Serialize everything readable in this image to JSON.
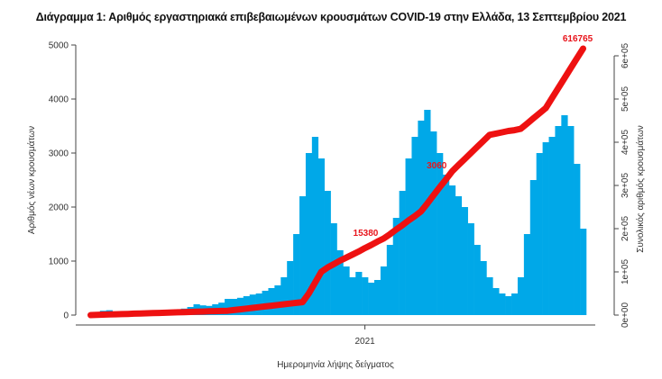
{
  "chart_data": {
    "type": "bar",
    "title": "Διάγραμμα 1: Αριθμός εργαστηριακά επιβεβαιωμένων κρουσμάτων COVID-19 στην Ελλάδα, 13 Σεπτεμβρίου 2021",
    "xlabel": "Ημερομηνία λήψης δείγματος",
    "ylabel": "Αριθμός νέων κρουσμάτων",
    "y2label": "Συνολικός αριθμός κρουσμάτων",
    "ylim": [
      0,
      5000
    ],
    "y2lim": [
      0,
      600000
    ],
    "yticks": [
      "0",
      "1000",
      "2000",
      "3000",
      "4000",
      "5000"
    ],
    "y2ticks": [
      "0e+00",
      "1e+05",
      "2e+05",
      "3e+05",
      "4e+05",
      "5e+05",
      "6e+05"
    ],
    "xticks": [
      {
        "label": "2021",
        "index": 44
      }
    ],
    "grid": false,
    "bar_color": "#00a8e8",
    "line_color": "#ee1111",
    "series": [
      {
        "type": "bar",
        "values": [
          20,
          50,
          80,
          90,
          60,
          40,
          30,
          20,
          20,
          20,
          30,
          40,
          60,
          80,
          100,
          120,
          150,
          200,
          180,
          170,
          200,
          230,
          300,
          300,
          320,
          350,
          380,
          400,
          450,
          500,
          550,
          700,
          1000,
          1500,
          2200,
          3000,
          3300,
          2900,
          2300,
          1700,
          1200,
          900,
          700,
          800,
          700,
          600,
          650,
          900,
          1300,
          1800,
          2300,
          2900,
          3300,
          3600,
          3800,
          3400,
          3000,
          2600,
          2400,
          2200,
          2000,
          1700,
          1300,
          1000,
          700,
          500,
          400,
          350,
          400,
          700,
          1500,
          2500,
          3000,
          3200,
          3300,
          3500,
          3700,
          3500,
          2800,
          1600
        ]
      },
      {
        "type": "line",
        "axis": "right",
        "values": [
          100,
          550,
          1000,
          1450,
          1900,
          2350,
          2800,
          3250,
          3700,
          4150,
          4600,
          5050,
          5500,
          5950,
          6400,
          6850,
          7300,
          7750,
          8200,
          8650,
          9100,
          9550,
          10000,
          11700,
          13300,
          15000,
          16700,
          18300,
          20000,
          21700,
          23300,
          25000,
          26700,
          28300,
          30000,
          50000,
          75000,
          100000,
          110000,
          118000,
          126000,
          133000,
          140000,
          147000,
          155000,
          162000,
          170000,
          177000,
          187000,
          198000,
          208000,
          219000,
          229000,
          240000,
          258000,
          277000,
          296000,
          314000,
          333000,
          347000,
          361000,
          375000,
          389000,
          403000,
          417000,
          420000,
          423000,
          426000,
          428000,
          431000,
          443000,
          455000,
          467000,
          479000,
          502000,
          525000,
          548000,
          571000,
          594000,
          616765
        ]
      }
    ],
    "annotations": [
      {
        "text": "15380",
        "index": 47
      },
      {
        "text": "3060",
        "index": 58
      },
      {
        "text": "616765",
        "index": 79
      }
    ]
  }
}
